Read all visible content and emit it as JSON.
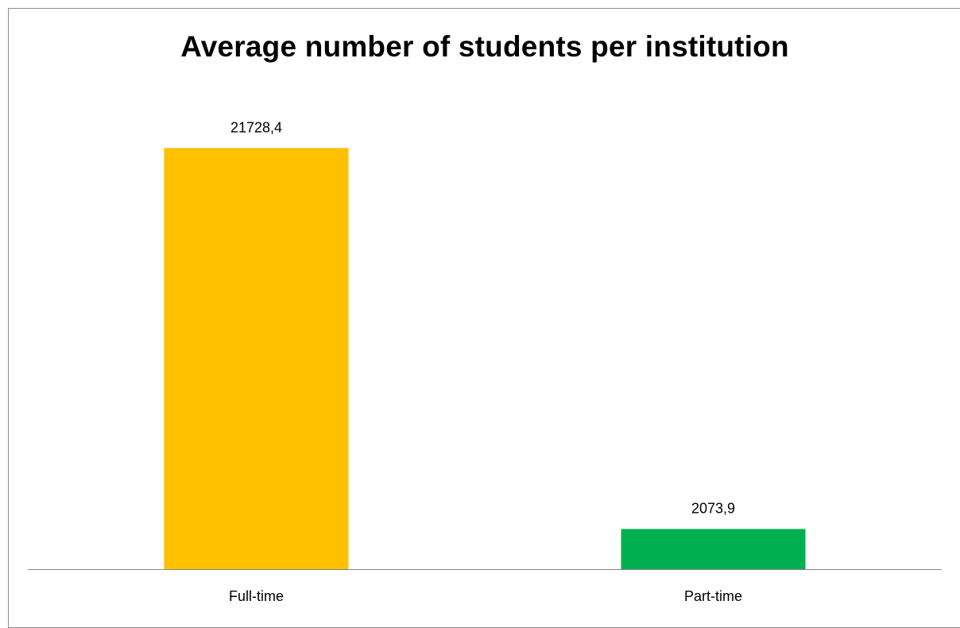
{
  "chart_data": {
    "type": "bar",
    "title": "Average number of students per institution",
    "categories": [
      "Full-time",
      "Part-time"
    ],
    "values": [
      21728.4,
      2073.9
    ],
    "value_labels": [
      "21728,4",
      "2073,9"
    ],
    "bar_colors": [
      "#FFC000",
      "#00B050"
    ],
    "xlabel": "",
    "ylabel": "",
    "ylim": [
      0,
      22600
    ],
    "grid": false,
    "legend": "none"
  }
}
